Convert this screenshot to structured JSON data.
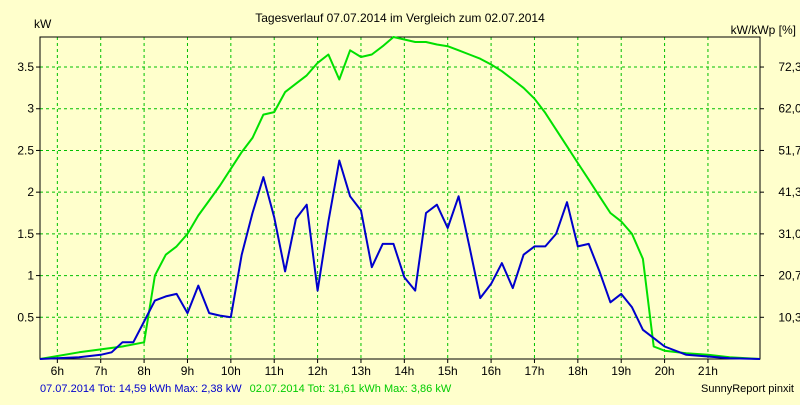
{
  "chart_data": {
    "type": "line",
    "title": "Tagesverlauf 07.07.2014 im Vergleich zum 02.07.2014",
    "ylabel_left": "kW",
    "ylabel_right": "kW/kWp [%]",
    "xlim": [
      5.6,
      22.2
    ],
    "ylim": [
      0,
      3.86
    ],
    "x_ticks": [
      {
        "x": 6,
        "label": "6h"
      },
      {
        "x": 7,
        "label": "7h"
      },
      {
        "x": 8,
        "label": "8h"
      },
      {
        "x": 9,
        "label": "9h"
      },
      {
        "x": 10,
        "label": "10h"
      },
      {
        "x": 11,
        "label": "11h"
      },
      {
        "x": 12,
        "label": "12h"
      },
      {
        "x": 13,
        "label": "13h"
      },
      {
        "x": 14,
        "label": "14h"
      },
      {
        "x": 15,
        "label": "15h"
      },
      {
        "x": 16,
        "label": "16h"
      },
      {
        "x": 17,
        "label": "17h"
      },
      {
        "x": 18,
        "label": "18h"
      },
      {
        "x": 19,
        "label": "19h"
      },
      {
        "x": 20,
        "label": "20h"
      },
      {
        "x": 21,
        "label": "21h"
      }
    ],
    "y_ticks_left": [
      {
        "y": 0.5,
        "label": "0.5"
      },
      {
        "y": 1,
        "label": "1"
      },
      {
        "y": 1.5,
        "label": "1.5"
      },
      {
        "y": 2,
        "label": "2"
      },
      {
        "y": 2.5,
        "label": "2.5"
      },
      {
        "y": 3,
        "label": "3"
      },
      {
        "y": 3.5,
        "label": "3.5"
      }
    ],
    "y_ticks_right": [
      {
        "y": 0.5,
        "label": "10,3"
      },
      {
        "y": 1,
        "label": "20,7"
      },
      {
        "y": 1.5,
        "label": "31,0"
      },
      {
        "y": 2,
        "label": "41,3"
      },
      {
        "y": 2.5,
        "label": "51,7"
      },
      {
        "y": 3,
        "label": "62,0"
      },
      {
        "y": 3.5,
        "label": "72,3"
      }
    ],
    "grid": true,
    "series": [
      {
        "color": "#00e000",
        "x": [
          5.6,
          6.5,
          7.5,
          8.0,
          8.25,
          8.5,
          8.75,
          9.0,
          9.25,
          9.5,
          9.75,
          10.0,
          10.25,
          10.5,
          10.75,
          11.0,
          11.25,
          11.5,
          11.75,
          12.0,
          12.25,
          12.5,
          12.75,
          13.0,
          13.25,
          13.5,
          13.75,
          14.0,
          14.25,
          14.5,
          14.75,
          15.0,
          15.25,
          15.5,
          15.75,
          16.0,
          16.25,
          16.5,
          16.75,
          17.0,
          17.25,
          17.5,
          17.75,
          18.0,
          18.25,
          18.5,
          18.75,
          19.0,
          19.25,
          19.5,
          19.75,
          20.0,
          20.5,
          21.0,
          21.5,
          22.2
        ],
        "y": [
          0.0,
          0.08,
          0.15,
          0.2,
          1.0,
          1.25,
          1.35,
          1.5,
          1.72,
          1.9,
          2.08,
          2.28,
          2.48,
          2.65,
          2.93,
          2.96,
          3.2,
          3.3,
          3.4,
          3.55,
          3.65,
          3.35,
          3.7,
          3.62,
          3.65,
          3.75,
          3.86,
          3.83,
          3.8,
          3.8,
          3.77,
          3.75,
          3.7,
          3.65,
          3.6,
          3.53,
          3.45,
          3.35,
          3.25,
          3.12,
          2.95,
          2.75,
          2.55,
          2.35,
          2.15,
          1.95,
          1.75,
          1.65,
          1.5,
          1.2,
          0.15,
          0.1,
          0.07,
          0.05,
          0.02,
          0.0
        ]
      },
      {
        "color": "#0000cc",
        "x": [
          5.6,
          6.5,
          7.0,
          7.25,
          7.5,
          7.75,
          8.0,
          8.25,
          8.5,
          8.75,
          9.0,
          9.25,
          9.5,
          9.75,
          10.0,
          10.25,
          10.5,
          10.75,
          11.0,
          11.25,
          11.5,
          11.75,
          12.0,
          12.25,
          12.5,
          12.75,
          13.0,
          13.25,
          13.5,
          13.75,
          14.0,
          14.25,
          14.5,
          14.75,
          15.0,
          15.25,
          15.5,
          15.75,
          16.0,
          16.25,
          16.5,
          16.75,
          17.0,
          17.25,
          17.5,
          17.75,
          18.0,
          18.25,
          18.5,
          18.75,
          19.0,
          19.25,
          19.5,
          19.75,
          20.0,
          20.5,
          21.0,
          21.5,
          22.2
        ],
        "y": [
          0.0,
          0.02,
          0.05,
          0.08,
          0.2,
          0.2,
          0.45,
          0.7,
          0.75,
          0.78,
          0.55,
          0.88,
          0.55,
          0.52,
          0.5,
          1.25,
          1.75,
          2.18,
          1.7,
          1.05,
          1.68,
          1.85,
          0.82,
          1.65,
          2.38,
          1.95,
          1.78,
          1.1,
          1.38,
          1.38,
          0.98,
          0.82,
          1.75,
          1.85,
          1.57,
          1.95,
          1.35,
          0.73,
          0.9,
          1.15,
          0.85,
          1.25,
          1.35,
          1.35,
          1.5,
          1.88,
          1.35,
          1.38,
          1.05,
          0.68,
          0.78,
          0.62,
          0.35,
          0.25,
          0.15,
          0.05,
          0.03,
          0.01,
          0.0
        ]
      }
    ]
  },
  "footer": {
    "left_series1_text": "07.07.2014 Tot: 14,59 kWh Max: 2,38 kW",
    "left_series2_text": "02.07.2014 Tot: 31,61 kWh Max: 3,86 kW",
    "right_text": "SunnyReport pinxit"
  },
  "colors": {
    "background": "#ffffcc",
    "grid": "#00c000",
    "series1_text": "#0000cc",
    "series2_text": "#00cc00",
    "text": "#000000"
  }
}
